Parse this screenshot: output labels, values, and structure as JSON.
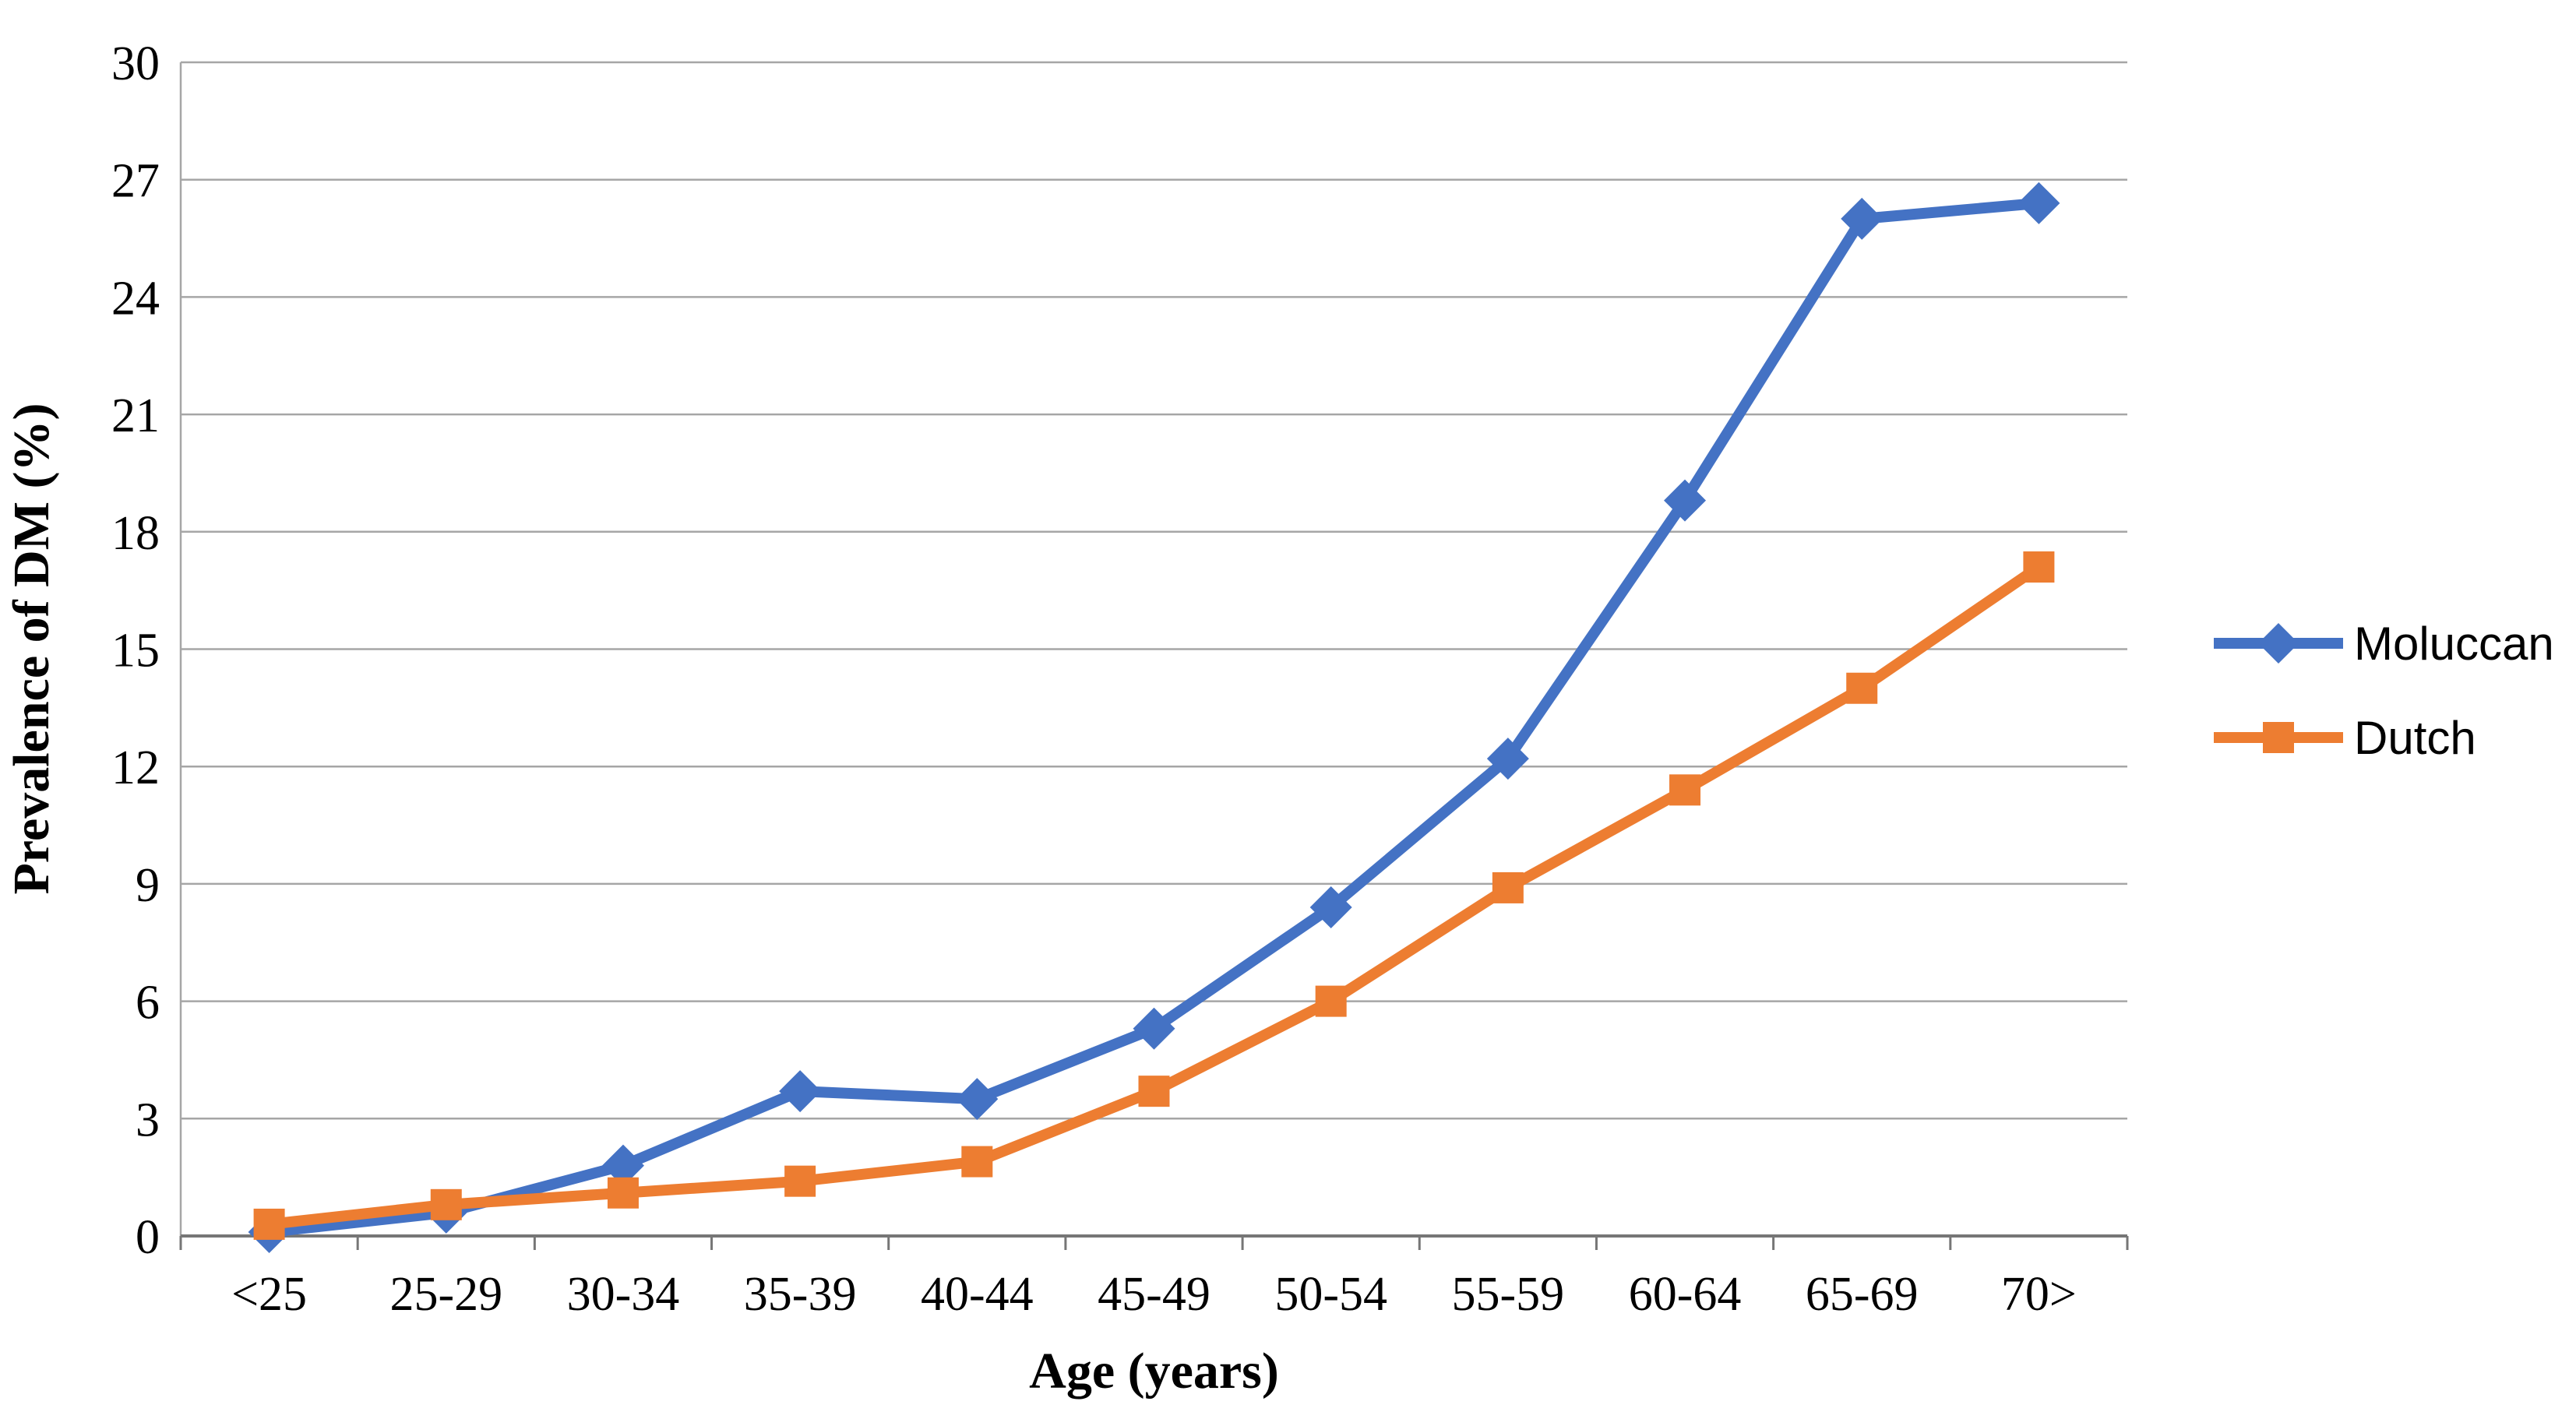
{
  "figure": {
    "background": "#ffffff"
  },
  "chart_data": {
    "type": "line",
    "title": "",
    "xlabel": "Age (years)",
    "ylabel": "Prevalence of DM (%)",
    "categories": [
      "<25",
      "25-29",
      "30-34",
      "35-39",
      "40-44",
      "45-49",
      "50-54",
      "55-59",
      "60-64",
      "65-69",
      "70>"
    ],
    "series": [
      {
        "name": "Moluccan",
        "color": "#4472C4",
        "marker": "diamond",
        "values": [
          0.1,
          0.6,
          1.8,
          3.7,
          3.5,
          5.3,
          8.4,
          12.2,
          18.8,
          26.0,
          26.4
        ]
      },
      {
        "name": "Dutch",
        "color": "#ED7D31",
        "marker": "square",
        "values": [
          0.3,
          0.8,
          1.1,
          1.4,
          1.9,
          3.7,
          6.0,
          8.9,
          11.4,
          14.0,
          17.1
        ]
      }
    ],
    "ylim": [
      0,
      30
    ],
    "ytick_step": 3,
    "yticks": [
      0,
      3,
      6,
      9,
      12,
      15,
      18,
      21,
      24,
      27,
      30
    ],
    "grid": true,
    "legend_position": "right",
    "gridline_color": "#A6A6A6",
    "axis_line_color": "#767676",
    "text_color": "#000000"
  }
}
